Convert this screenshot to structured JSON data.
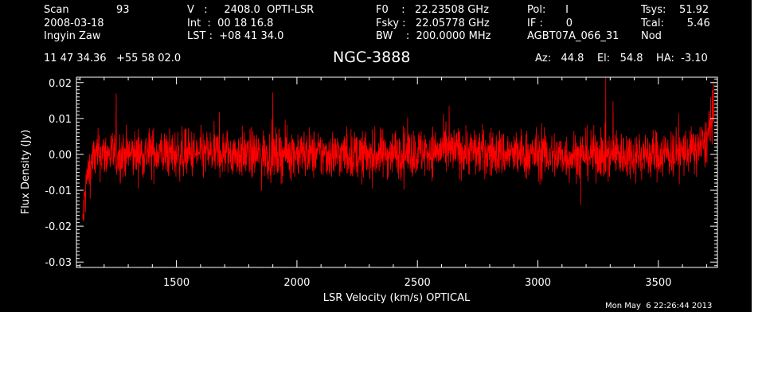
{
  "header": {
    "scan_label": "Scan",
    "scan_value": "93",
    "date": "2008-03-18",
    "observer": "Ingyin Zaw",
    "velocity": "V   :     2408.0  OPTI-LSR",
    "integration": "Int  :  00 18 16.8",
    "lst": "LST :  +08 41 34.0",
    "f0": "F0    :   22.23508 GHz",
    "fsky": "Fsky :   22.05778 GHz",
    "bw": "BW    :  200.0000 MHz",
    "pol": "Pol:      I",
    "if": "IF :       0",
    "project": "AGBT07A_066_31",
    "tsys": "Tsys:    51.92",
    "tcal": "Tcal:       5.46",
    "mode": "Nod",
    "coords": "11 47 34.36   +55 58 02.0",
    "source": "NGC-3888",
    "pointing": "Az:   44.8    El:   54.8    HA:  -3.10",
    "timestamp": "Mon May  6 22:26:44 2013"
  },
  "chart_data": {
    "type": "line",
    "xlabel": "LSR Velocity (km/s) OPTICAL",
    "ylabel": "Flux Density (Jy)",
    "xlim": [
      1085,
      3745
    ],
    "ylim": [
      -0.0315,
      0.0215
    ],
    "x_ticks": [
      1500,
      2000,
      2500,
      3000,
      3500
    ],
    "x_tick_labels": [
      "1500",
      "2000",
      "2500",
      "3000",
      "3500"
    ],
    "y_ticks": [
      -0.03,
      -0.02,
      -0.01,
      0.0,
      0.01,
      0.02
    ],
    "y_tick_labels": [
      "-0.03",
      "-0.02",
      "-0.01",
      "0.00",
      "0.01",
      "0.02"
    ],
    "series_color": "#ff0000",
    "axis_color": "#ffffff",
    "background": "#000000",
    "series": [
      {
        "x": [
          1110,
          1115,
          1120,
          1125,
          1130,
          1140,
          1150,
          1160,
          1180,
          1200,
          1300,
          1400,
          1500,
          1600,
          1700,
          1800,
          1900,
          2000,
          2100,
          2200,
          2300,
          2400,
          2500,
          2600,
          2700,
          2800,
          2900,
          3000,
          3100,
          3200,
          3300,
          3400,
          3500,
          3600,
          3650,
          3680,
          3700,
          3710,
          3720,
          3730
        ],
        "y": [
          -0.02,
          -0.016,
          -0.012,
          -0.009,
          -0.006,
          -0.004,
          -0.002,
          -0.001,
          0.0,
          0.0,
          0.0,
          0.0005,
          0.0,
          0.0,
          0.0005,
          0.0,
          0.0,
          0.0005,
          0.0,
          0.0,
          -0.0005,
          0.0005,
          0.0005,
          0.001,
          0.001,
          0.0005,
          0.0,
          0.0,
          -0.0005,
          0.0,
          0.0,
          0.0,
          0.0,
          0.0005,
          0.001,
          0.002,
          0.004,
          0.006,
          0.009,
          0.012
        ]
      }
    ]
  }
}
